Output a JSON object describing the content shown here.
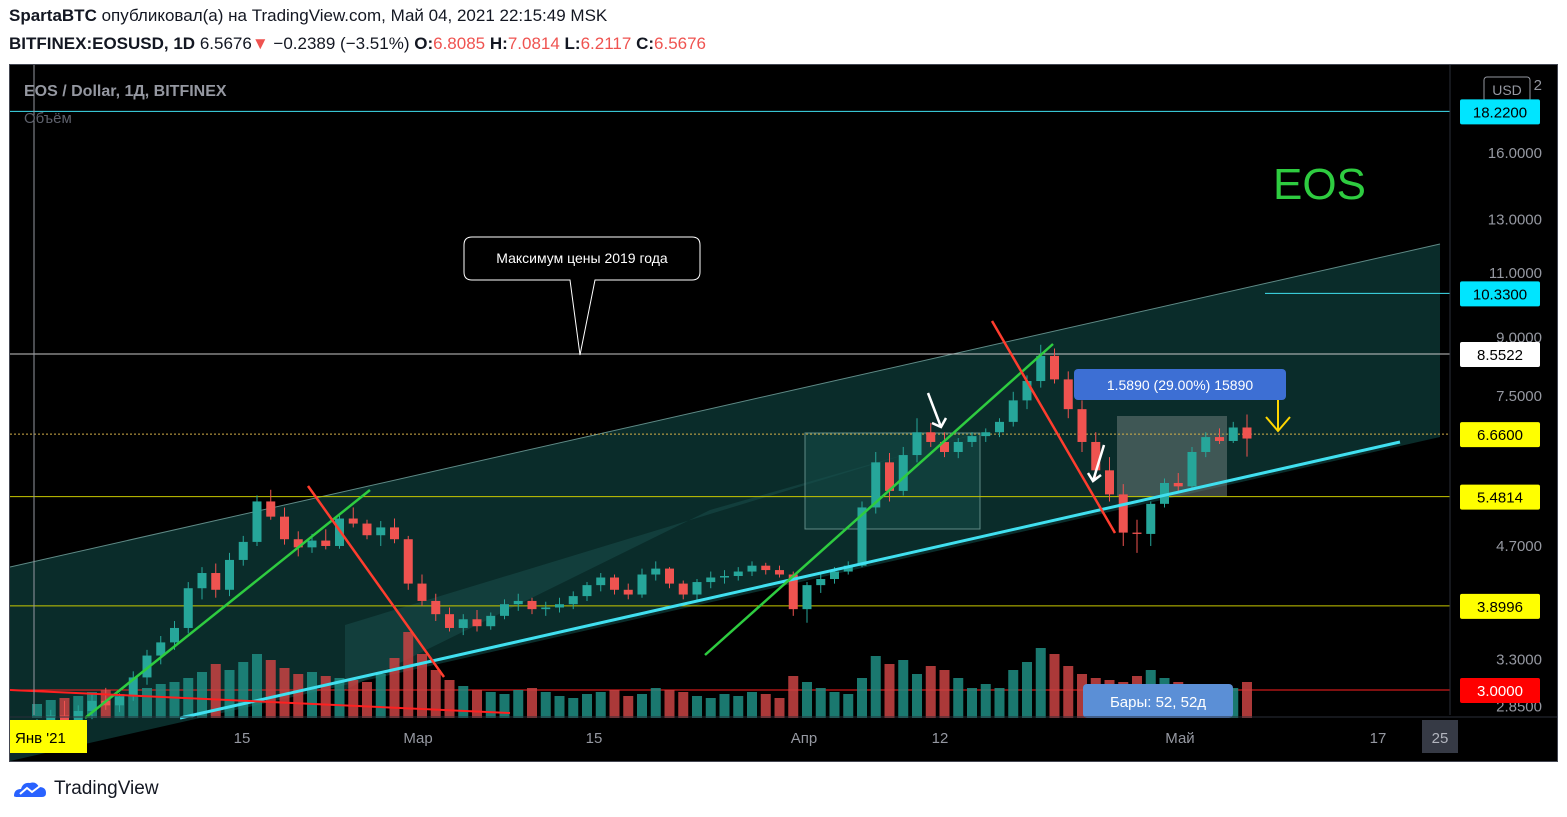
{
  "header": {
    "author": "SpartaBTC",
    "published_text": "опубликовал(а) на TradingView.com, Май 04, 2021 22:15:49 MSK",
    "symbol": "BITFINEX:EOSUSD, 1D",
    "last": "6.5676",
    "change_arrow": "▼",
    "change": "−0.2389 (−3.51%)",
    "o_label": "O:",
    "o": "6.8085",
    "h_label": "H:",
    "h": "7.0814",
    "l_label": "L:",
    "l": "6.2117",
    "c_label": "C:",
    "c": "6.5676"
  },
  "chart": {
    "title": "EOS / Dollar, 1Д, BITFINEX",
    "volume_label": "Объём",
    "big_label": "EOS",
    "currency": "USD",
    "callout": "Максимум цены 2019 года",
    "measure_label": "1.5890 (29.00%) 15890",
    "bars_label": "Бары: 52, 52д",
    "axis_top_partial": "2",
    "x_ticks": [
      "Янв '21",
      "15",
      "Мар",
      "15",
      "Апр",
      "12",
      "Май",
      "17",
      "25"
    ],
    "y_ticks": [
      "16.0000",
      "13.0000",
      "11.0000",
      "9.0000",
      "7.5000",
      "4.7000",
      "3.3000",
      "2.8500"
    ],
    "price_tags": [
      {
        "value": "18.2200",
        "color": "#00e5ff",
        "text": "#000000"
      },
      {
        "value": "10.3300",
        "color": "#00e5ff",
        "text": "#000000"
      },
      {
        "value": "8.5522",
        "color": "#ffffff",
        "text": "#000000"
      },
      {
        "value": "6.6600",
        "color": "#ffff00",
        "text": "#000000"
      },
      {
        "value": "5.4814",
        "color": "#ffff00",
        "text": "#000000"
      },
      {
        "value": "3.8996",
        "color": "#ffff00",
        "text": "#000000"
      },
      {
        "value": "3.0000",
        "color": "#ff0000",
        "text": "#ffffff"
      }
    ],
    "colors": {
      "up": "#26a69a",
      "down": "#ef5350",
      "up_line": "#2ecc40",
      "down_line": "#ff3d2e",
      "support": "#40e0f0",
      "channel": "#0e3b38"
    }
  },
  "footer": {
    "brand": "TradingView"
  },
  "chart_data": {
    "type": "candlestick",
    "title": "EOS / Dollar, 1Д, BITFINEX",
    "x_range": [
      "2021-01-01",
      "2021-05-25"
    ],
    "y_scale": "log",
    "ylim": [
      2.75,
      20.5
    ],
    "horizontal_levels": [
      18.22,
      10.33,
      8.5522,
      6.66,
      5.4814,
      3.8996,
      3.0
    ],
    "ohlc": [
      [
        2.62,
        2.74,
        2.56,
        2.68
      ],
      [
        2.68,
        2.82,
        2.63,
        2.77
      ],
      [
        2.77,
        2.9,
        2.7,
        2.72
      ],
      [
        2.72,
        2.86,
        2.68,
        2.81
      ],
      [
        2.81,
        2.96,
        2.74,
        2.9
      ],
      [
        2.9,
        3.02,
        2.82,
        2.86
      ],
      [
        2.86,
        2.97,
        2.8,
        2.94
      ],
      [
        2.94,
        3.18,
        2.9,
        3.12
      ],
      [
        3.12,
        3.4,
        3.05,
        3.34
      ],
      [
        3.34,
        3.55,
        3.25,
        3.48
      ],
      [
        3.48,
        3.72,
        3.4,
        3.64
      ],
      [
        3.64,
        4.2,
        3.58,
        4.12
      ],
      [
        4.12,
        4.4,
        3.98,
        4.32
      ],
      [
        4.32,
        4.45,
        4.0,
        4.1
      ],
      [
        4.1,
        4.6,
        4.02,
        4.5
      ],
      [
        4.5,
        4.85,
        4.42,
        4.76
      ],
      [
        4.76,
        5.5,
        4.7,
        5.4
      ],
      [
        5.4,
        5.6,
        5.1,
        5.15
      ],
      [
        5.15,
        5.3,
        4.72,
        4.8
      ],
      [
        4.8,
        4.92,
        4.55,
        4.68
      ],
      [
        4.68,
        4.88,
        4.6,
        4.78
      ],
      [
        4.78,
        4.95,
        4.65,
        4.7
      ],
      [
        4.7,
        5.2,
        4.66,
        5.12
      ],
      [
        5.12,
        5.3,
        4.98,
        5.04
      ],
      [
        5.04,
        5.1,
        4.8,
        4.86
      ],
      [
        4.86,
        5.08,
        4.7,
        4.98
      ],
      [
        4.98,
        5.12,
        4.74,
        4.8
      ],
      [
        4.8,
        4.85,
        4.1,
        4.18
      ],
      [
        4.18,
        4.3,
        3.9,
        3.96
      ],
      [
        3.96,
        4.05,
        3.72,
        3.8
      ],
      [
        3.8,
        3.88,
        3.6,
        3.64
      ],
      [
        3.64,
        3.8,
        3.56,
        3.74
      ],
      [
        3.74,
        3.85,
        3.6,
        3.66
      ],
      [
        3.66,
        3.82,
        3.62,
        3.78
      ],
      [
        3.78,
        3.98,
        3.74,
        3.92
      ],
      [
        3.92,
        4.05,
        3.84,
        3.96
      ],
      [
        3.96,
        4.0,
        3.8,
        3.86
      ],
      [
        3.86,
        3.95,
        3.78,
        3.88
      ],
      [
        3.88,
        4.0,
        3.82,
        3.92
      ],
      [
        3.92,
        4.08,
        3.86,
        4.02
      ],
      [
        4.02,
        4.2,
        3.96,
        4.16
      ],
      [
        4.16,
        4.32,
        4.08,
        4.26
      ],
      [
        4.26,
        4.3,
        4.04,
        4.1
      ],
      [
        4.1,
        4.18,
        3.98,
        4.04
      ],
      [
        4.04,
        4.38,
        4.0,
        4.3
      ],
      [
        4.3,
        4.48,
        4.22,
        4.38
      ],
      [
        4.38,
        4.4,
        4.12,
        4.18
      ],
      [
        4.18,
        4.22,
        3.98,
        4.04
      ],
      [
        4.04,
        4.24,
        3.94,
        4.2
      ],
      [
        4.2,
        4.34,
        4.12,
        4.26
      ],
      [
        4.26,
        4.36,
        4.18,
        4.28
      ],
      [
        4.28,
        4.4,
        4.22,
        4.34
      ],
      [
        4.34,
        4.48,
        4.28,
        4.42
      ],
      [
        4.42,
        4.46,
        4.3,
        4.36
      ],
      [
        4.36,
        4.42,
        4.26,
        4.3
      ],
      [
        4.3,
        4.34,
        3.78,
        3.86
      ],
      [
        3.86,
        4.2,
        3.7,
        4.16
      ],
      [
        4.16,
        4.3,
        4.06,
        4.24
      ],
      [
        4.24,
        4.4,
        4.18,
        4.34
      ],
      [
        4.34,
        4.48,
        4.3,
        4.42
      ],
      [
        4.42,
        5.4,
        4.4,
        5.3
      ],
      [
        5.3,
        6.3,
        5.2,
        6.1
      ],
      [
        6.1,
        6.28,
        5.4,
        5.58
      ],
      [
        5.58,
        6.4,
        5.5,
        6.24
      ],
      [
        6.24,
        7.0,
        6.1,
        6.7
      ],
      [
        6.7,
        6.9,
        6.4,
        6.5
      ],
      [
        6.5,
        6.7,
        6.2,
        6.3
      ],
      [
        6.3,
        6.58,
        6.18,
        6.5
      ],
      [
        6.5,
        6.7,
        6.4,
        6.62
      ],
      [
        6.62,
        6.78,
        6.5,
        6.7
      ],
      [
        6.7,
        7.0,
        6.6,
        6.92
      ],
      [
        6.92,
        7.6,
        6.82,
        7.4
      ],
      [
        7.4,
        8.0,
        7.2,
        7.86
      ],
      [
        7.86,
        8.8,
        7.7,
        8.5
      ],
      [
        8.5,
        8.7,
        7.8,
        7.9
      ],
      [
        7.9,
        8.1,
        7.0,
        7.2
      ],
      [
        7.2,
        7.4,
        6.3,
        6.5
      ],
      [
        6.5,
        6.7,
        5.8,
        5.95
      ],
      [
        5.95,
        6.2,
        5.4,
        5.52
      ],
      [
        5.52,
        5.7,
        4.7,
        4.9
      ],
      [
        4.9,
        5.1,
        4.6,
        4.88
      ],
      [
        4.88,
        5.4,
        4.7,
        5.36
      ],
      [
        5.36,
        5.8,
        5.3,
        5.72
      ],
      [
        5.72,
        5.9,
        5.56,
        5.66
      ],
      [
        5.66,
        6.4,
        5.6,
        6.3
      ],
      [
        6.3,
        6.7,
        6.2,
        6.6
      ],
      [
        6.6,
        6.78,
        6.46,
        6.52
      ],
      [
        6.52,
        6.92,
        6.48,
        6.8
      ],
      [
        6.8,
        7.08,
        6.21,
        6.57
      ]
    ]
  }
}
